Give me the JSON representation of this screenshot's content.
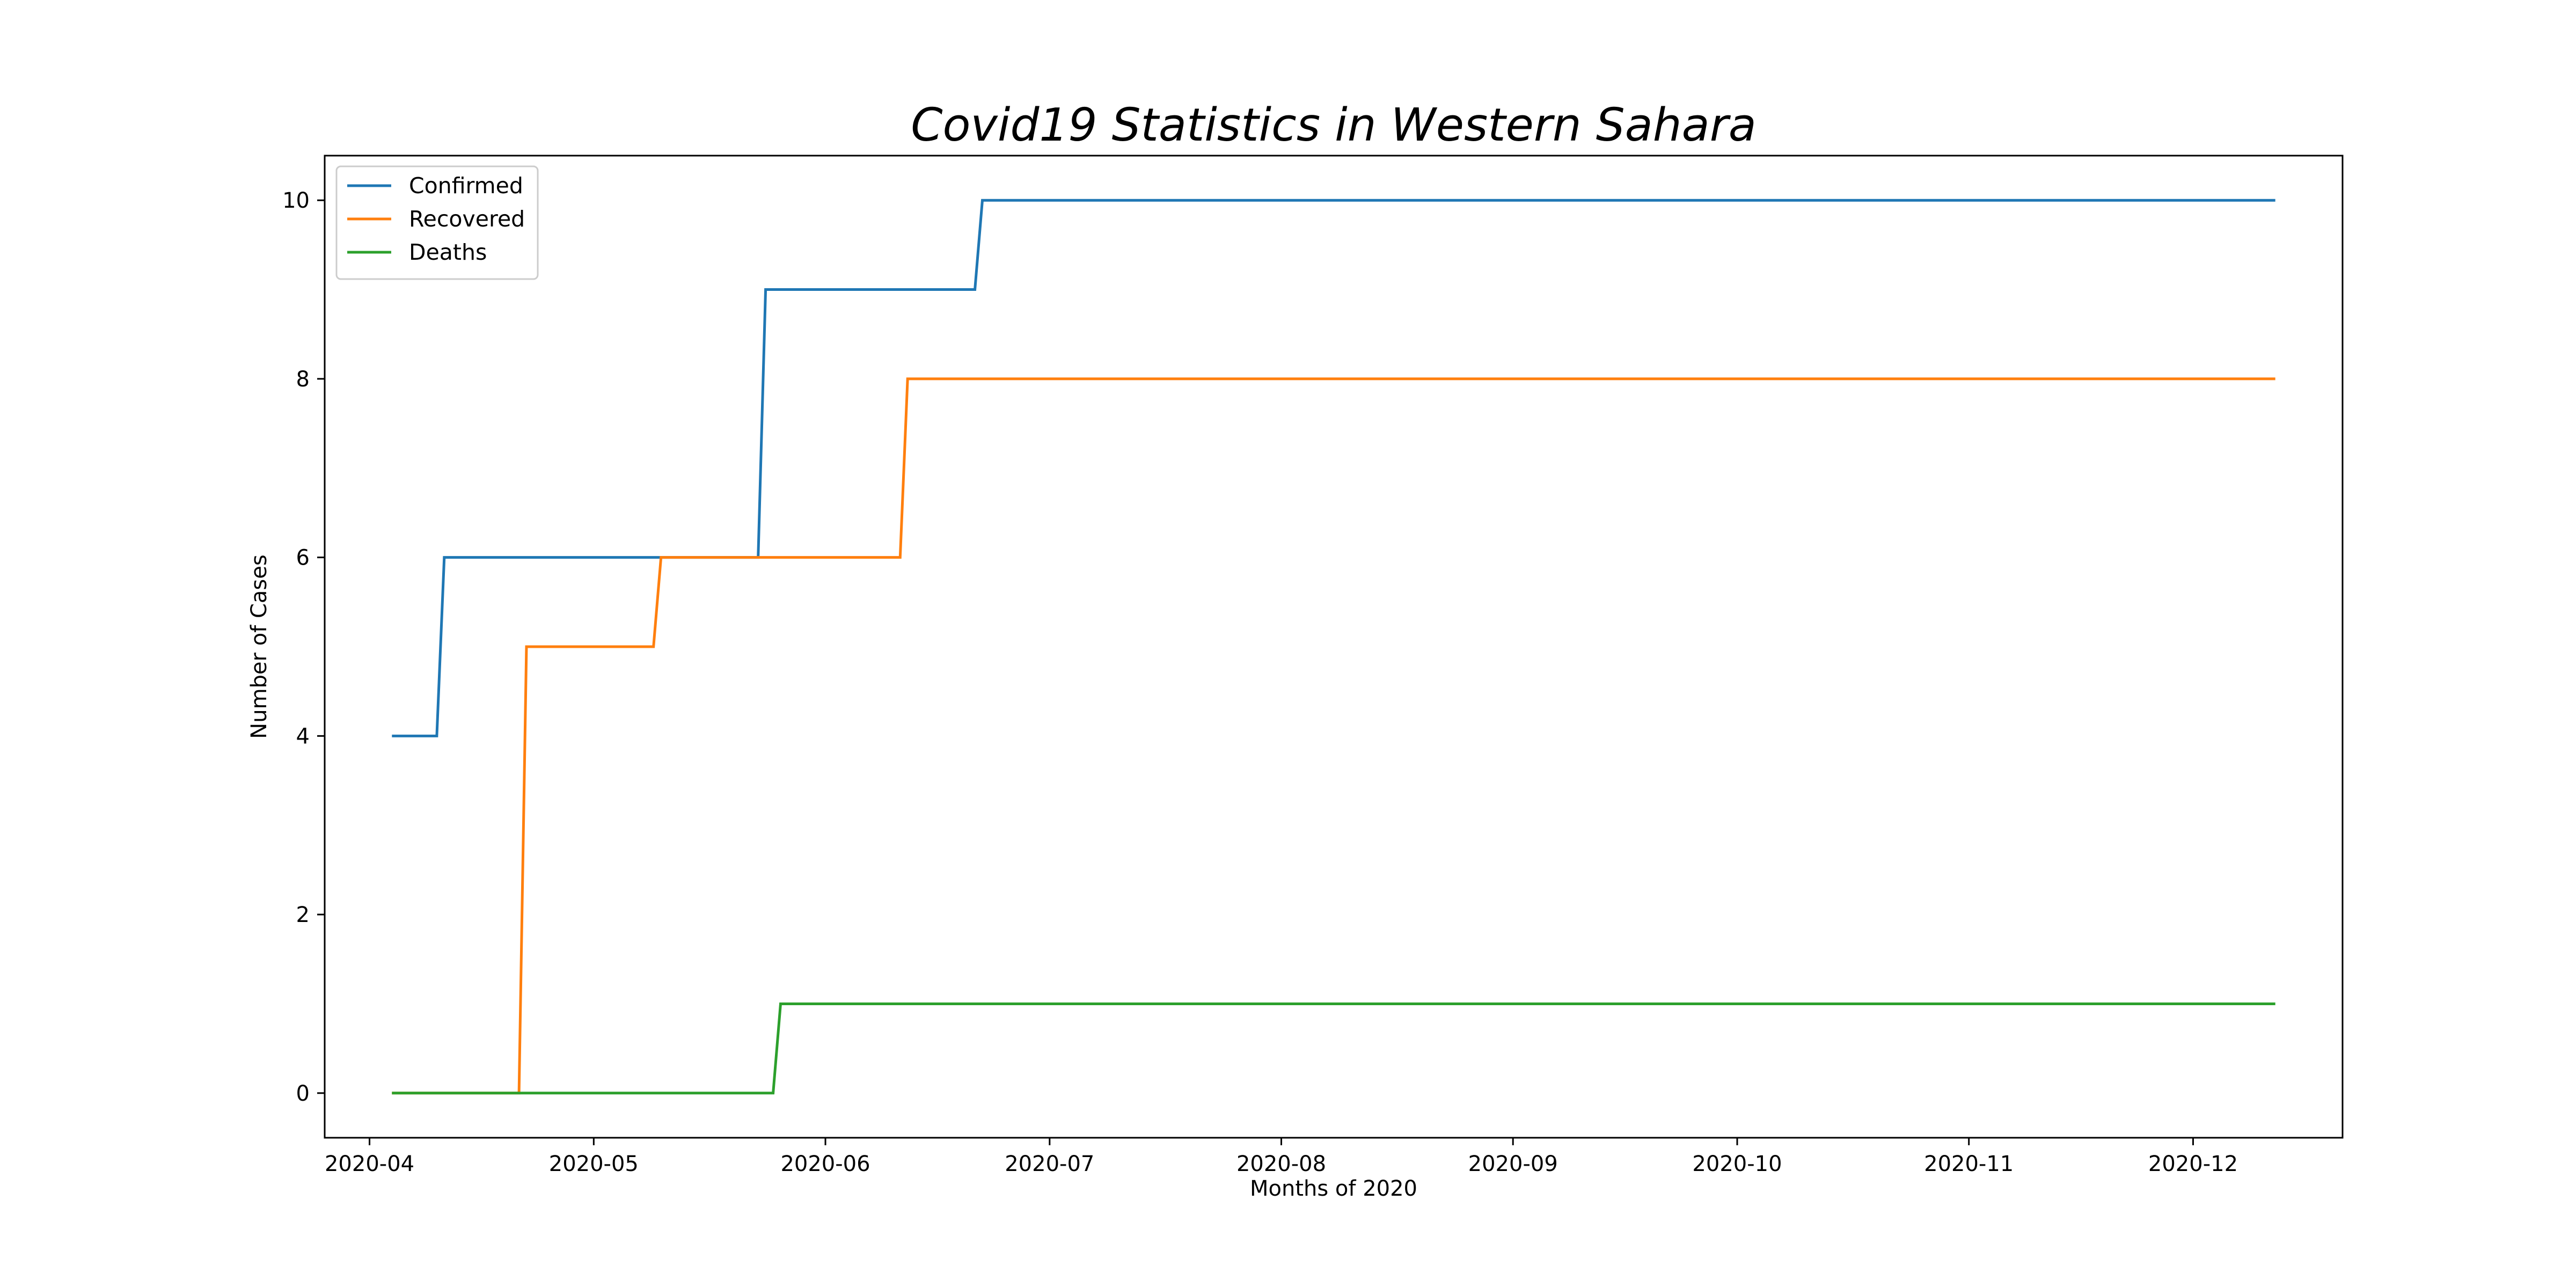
{
  "chart_data": {
    "type": "line",
    "title": "Covid19 Statistics in Western Sahara",
    "xlabel": "Months of 2020",
    "ylabel": "Number of Cases",
    "x_axis_type": "date",
    "xlim": [
      "2020-03-26",
      "2020-12-21"
    ],
    "ylim": [
      -0.5,
      10.5
    ],
    "x_ticks": [
      {
        "date": "2020-04-01",
        "label": "2020-04"
      },
      {
        "date": "2020-05-01",
        "label": "2020-05"
      },
      {
        "date": "2020-06-01",
        "label": "2020-06"
      },
      {
        "date": "2020-07-01",
        "label": "2020-07"
      },
      {
        "date": "2020-08-01",
        "label": "2020-08"
      },
      {
        "date": "2020-09-01",
        "label": "2020-09"
      },
      {
        "date": "2020-10-01",
        "label": "2020-10"
      },
      {
        "date": "2020-11-01",
        "label": "2020-11"
      },
      {
        "date": "2020-12-01",
        "label": "2020-12"
      }
    ],
    "y_ticks": [
      0,
      2,
      4,
      6,
      8,
      10
    ],
    "grid": false,
    "legend_position": "top-left",
    "series": [
      {
        "name": "Confirmed",
        "color": "#1f77b4",
        "points": [
          [
            "2020-04-04",
            4
          ],
          [
            "2020-04-10",
            4
          ],
          [
            "2020-04-11",
            6
          ],
          [
            "2020-05-23",
            6
          ],
          [
            "2020-05-24",
            9
          ],
          [
            "2020-06-21",
            9
          ],
          [
            "2020-06-22",
            10
          ],
          [
            "2020-12-12",
            10
          ]
        ]
      },
      {
        "name": "Recovered",
        "color": "#ff7f0e",
        "points": [
          [
            "2020-04-04",
            0
          ],
          [
            "2020-04-21",
            0
          ],
          [
            "2020-04-22",
            5
          ],
          [
            "2020-05-09",
            5
          ],
          [
            "2020-05-10",
            6
          ],
          [
            "2020-06-11",
            6
          ],
          [
            "2020-06-12",
            8
          ],
          [
            "2020-12-12",
            8
          ]
        ]
      },
      {
        "name": "Deaths",
        "color": "#2ca02c",
        "points": [
          [
            "2020-04-04",
            0
          ],
          [
            "2020-05-25",
            0
          ],
          [
            "2020-05-26",
            1
          ],
          [
            "2020-12-12",
            1
          ]
        ]
      }
    ]
  }
}
